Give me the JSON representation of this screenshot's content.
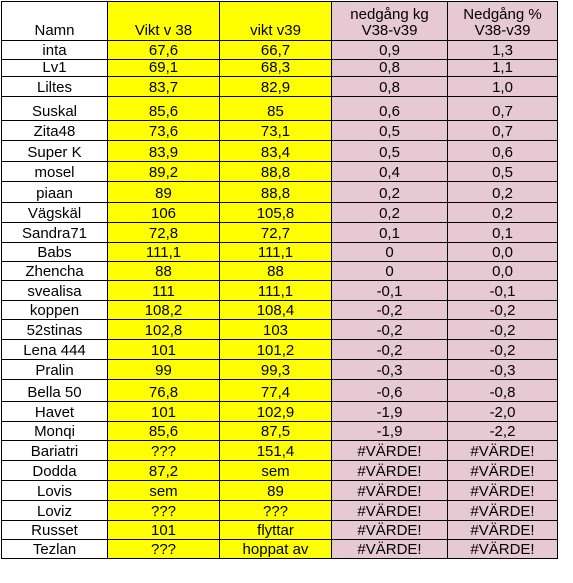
{
  "colors": {
    "yellow": "#ffff00",
    "pink": "#e6c9d2",
    "grid": "#000000"
  },
  "headers": {
    "name": "Namn",
    "v38": "Vikt v 38",
    "v39": "vikt v39",
    "kg_line1": "nedgång kg",
    "kg_line2": "V38-v39",
    "pct_line1": "Nedgång %",
    "pct_line2": "V38-v39"
  },
  "rows": [
    {
      "name": "inta",
      "v38": "67,6",
      "v39": "66,7",
      "kg": "0,9",
      "pct": "1,3"
    },
    {
      "name": "Lv1",
      "v38": "69,1",
      "v39": "68,3",
      "kg": "0,8",
      "pct": "1,1"
    },
    {
      "name": "Liltes",
      "v38": "83,7",
      "v39": "82,9",
      "kg": "0,8",
      "pct": "1,0"
    },
    {
      "name": "Suskal",
      "v38": "85,6",
      "v39": "85",
      "kg": "0,6",
      "pct": "0,7"
    },
    {
      "name": "Zita48",
      "v38": "73,6",
      "v39": "73,1",
      "kg": "0,5",
      "pct": "0,7"
    },
    {
      "name": "Super K",
      "v38": "83,9",
      "v39": "83,4",
      "kg": "0,5",
      "pct": "0,6"
    },
    {
      "name": "mosel",
      "v38": "89,2",
      "v39": "88,8",
      "kg": "0,4",
      "pct": "0,5"
    },
    {
      "name": "piaan",
      "v38": "89",
      "v39": "88,8",
      "kg": "0,2",
      "pct": "0,2"
    },
    {
      "name": "Vägskäl",
      "v38": "106",
      "v39": "105,8",
      "kg": "0,2",
      "pct": "0,2"
    },
    {
      "name": "Sandra71",
      "v38": "72,8",
      "v39": "72,7",
      "kg": "0,1",
      "pct": "0,1"
    },
    {
      "name": "Babs",
      "v38": "111,1",
      "v39": "111,1",
      "kg": "0",
      "pct": "0,0"
    },
    {
      "name": "Zhencha",
      "v38": "88",
      "v39": "88",
      "kg": "0",
      "pct": "0,0"
    },
    {
      "name": "svealisa",
      "v38": "111",
      "v39": "111,1",
      "kg": "-0,1",
      "pct": "-0,1"
    },
    {
      "name": "koppen",
      "v38": "108,2",
      "v39": "108,4",
      "kg": "-0,2",
      "pct": "-0,2"
    },
    {
      "name": "52stinas",
      "v38": "102,8",
      "v39": "103",
      "kg": "-0,2",
      "pct": "-0,2"
    },
    {
      "name": "Lena 444",
      "v38": "101",
      "v39": "101,2",
      "kg": "-0,2",
      "pct": "-0,2"
    },
    {
      "name": "Pralin",
      "v38": "99",
      "v39": "99,3",
      "kg": "-0,3",
      "pct": "-0,3"
    },
    {
      "name": "Bella 50",
      "v38": "76,8",
      "v39": "77,4",
      "kg": "-0,6",
      "pct": "-0,8"
    },
    {
      "name": "Havet",
      "v38": "101",
      "v39": "102,9",
      "kg": "-1,9",
      "pct": "-2,0"
    },
    {
      "name": "Monqi",
      "v38": "85,6",
      "v39": "87,5",
      "kg": "-1,9",
      "pct": "-2,2"
    },
    {
      "name": "Bariatri",
      "v38": "???",
      "v39": "151,4",
      "kg": "#VÄRDE!",
      "pct": "#VÄRDE!"
    },
    {
      "name": "Dodda",
      "v38": "87,2",
      "v39": "sem",
      "kg": "#VÄRDE!",
      "pct": "#VÄRDE!"
    },
    {
      "name": "Lovis",
      "v38": "sem",
      "v39": "89",
      "kg": "#VÄRDE!",
      "pct": "#VÄRDE!"
    },
    {
      "name": "Loviz",
      "v38": "???",
      "v39": "???",
      "kg": "#VÄRDE!",
      "pct": "#VÄRDE!"
    },
    {
      "name": "Russet",
      "v38": "101",
      "v39": "flyttar",
      "kg": "#VÄRDE!",
      "pct": "#VÄRDE!"
    },
    {
      "name": "Tezlan",
      "v38": "???",
      "v39": "hoppat av",
      "kg": "#VÄRDE!",
      "pct": "#VÄRDE!"
    }
  ]
}
